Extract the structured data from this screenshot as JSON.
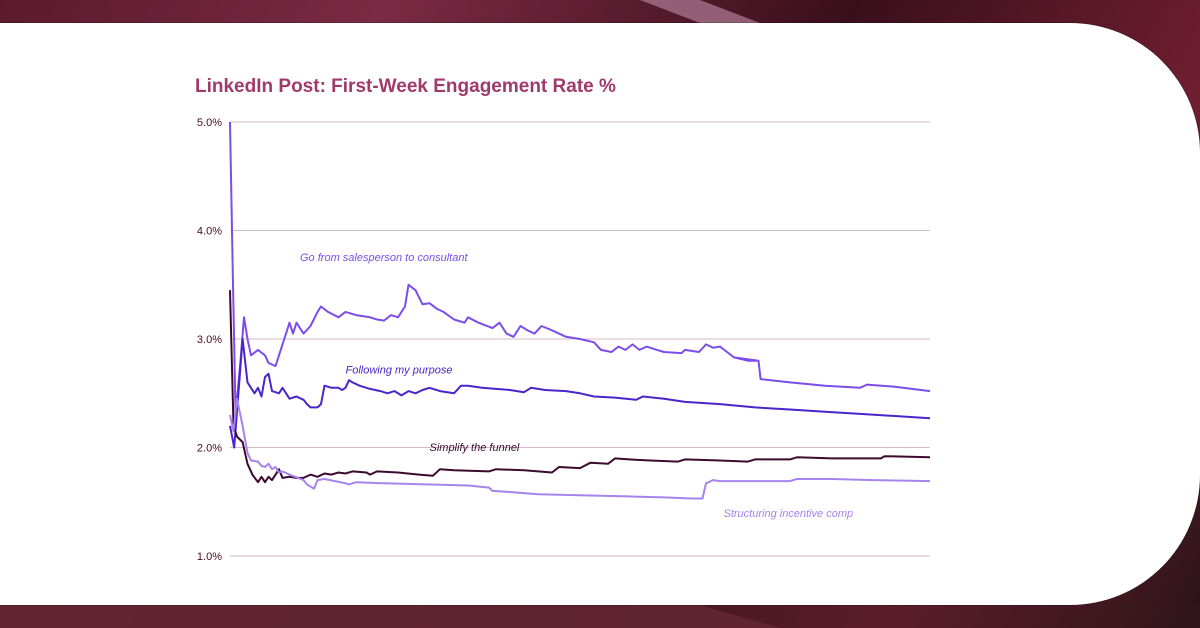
{
  "theme": {
    "title_color": "#a03a6b",
    "grid_color": "#c9a3b5",
    "tick_color": "#4a0b1e"
  },
  "chart_data": {
    "type": "line",
    "title": "LinkedIn Post: First-Week Engagement Rate %",
    "xlabel": "",
    "ylabel": "",
    "ylim": [
      1.0,
      5.0
    ],
    "xlim": [
      0,
      100
    ],
    "y_ticks": [
      {
        "value": 1.0,
        "label": "1.0%"
      },
      {
        "value": 2.0,
        "label": "2.0%"
      },
      {
        "value": 3.0,
        "label": "3.0%"
      },
      {
        "value": 4.0,
        "label": "4.0%"
      },
      {
        "value": 5.0,
        "label": "5.0%"
      }
    ],
    "grid": true,
    "legend": "inline labels",
    "series": [
      {
        "name": "Go from salesperson to consultant",
        "color": "#7c4dea",
        "label_at": [
          10,
          3.72
        ],
        "points": [
          [
            0,
            5.0
          ],
          [
            0.4,
            3.6
          ],
          [
            0.8,
            2.3
          ],
          [
            1.5,
            2.8
          ],
          [
            2.0,
            3.2
          ],
          [
            2.5,
            3.0
          ],
          [
            3.0,
            2.85
          ],
          [
            4.0,
            2.9
          ],
          [
            5.0,
            2.85
          ],
          [
            5.5,
            2.78
          ],
          [
            6.5,
            2.75
          ],
          [
            7.5,
            2.95
          ],
          [
            8.5,
            3.15
          ],
          [
            9.0,
            3.05
          ],
          [
            9.5,
            3.15
          ],
          [
            10.5,
            3.05
          ],
          [
            11.5,
            3.12
          ],
          [
            12.5,
            3.25
          ],
          [
            13.0,
            3.3
          ],
          [
            14.0,
            3.25
          ],
          [
            15.5,
            3.2
          ],
          [
            16.5,
            3.25
          ],
          [
            18.0,
            3.22
          ],
          [
            20.0,
            3.2
          ],
          [
            21.0,
            3.18
          ],
          [
            22.0,
            3.17
          ],
          [
            23.0,
            3.22
          ],
          [
            24.0,
            3.2
          ],
          [
            25.0,
            3.3
          ],
          [
            25.5,
            3.5
          ],
          [
            26.5,
            3.45
          ],
          [
            27.5,
            3.32
          ],
          [
            28.5,
            3.33
          ],
          [
            29.5,
            3.28
          ],
          [
            30.5,
            3.25
          ],
          [
            32.0,
            3.18
          ],
          [
            33.5,
            3.15
          ],
          [
            34.0,
            3.2
          ],
          [
            35.5,
            3.15
          ],
          [
            37.5,
            3.1
          ],
          [
            38.5,
            3.15
          ],
          [
            39.5,
            3.05
          ],
          [
            40.5,
            3.02
          ],
          [
            41.5,
            3.12
          ],
          [
            42.5,
            3.08
          ],
          [
            43.5,
            3.05
          ],
          [
            44.5,
            3.12
          ],
          [
            46.0,
            3.08
          ],
          [
            48.0,
            3.02
          ],
          [
            50.0,
            3.0
          ],
          [
            52.0,
            2.97
          ],
          [
            53.0,
            2.9
          ],
          [
            54.5,
            2.88
          ],
          [
            55.5,
            2.93
          ],
          [
            56.5,
            2.9
          ],
          [
            57.5,
            2.95
          ],
          [
            58.5,
            2.9
          ],
          [
            59.5,
            2.93
          ],
          [
            61.0,
            2.9
          ],
          [
            62.0,
            2.88
          ],
          [
            64.5,
            2.87
          ],
          [
            65.0,
            2.9
          ],
          [
            67.0,
            2.88
          ],
          [
            68.0,
            2.95
          ],
          [
            69.0,
            2.92
          ],
          [
            70.0,
            2.93
          ],
          [
            71.0,
            2.88
          ],
          [
            72.0,
            2.83
          ],
          [
            74.0,
            2.8
          ],
          [
            75.5,
            2.8
          ],
          [
            72.0,
            2.83
          ],
          [
            75.5,
            2.8
          ],
          [
            75.8,
            2.63
          ],
          [
            80.0,
            2.6
          ],
          [
            85.0,
            2.57
          ],
          [
            90.0,
            2.55
          ],
          [
            91.0,
            2.58
          ],
          [
            95.0,
            2.56
          ],
          [
            100.0,
            2.52
          ]
        ]
      },
      {
        "name": "Following my purpose",
        "color": "#4a25c9",
        "label_at": [
          16.5,
          2.68
        ],
        "points": [
          [
            0,
            2.2
          ],
          [
            0.6,
            2.0
          ],
          [
            1.2,
            2.5
          ],
          [
            1.8,
            3.0
          ],
          [
            2.5,
            2.6
          ],
          [
            3.5,
            2.5
          ],
          [
            4.0,
            2.55
          ],
          [
            4.5,
            2.47
          ],
          [
            5.0,
            2.65
          ],
          [
            5.5,
            2.68
          ],
          [
            6.0,
            2.52
          ],
          [
            7.0,
            2.5
          ],
          [
            7.5,
            2.55
          ],
          [
            8.5,
            2.45
          ],
          [
            9.5,
            2.47
          ],
          [
            10.5,
            2.44
          ],
          [
            11.0,
            2.4
          ],
          [
            11.5,
            2.37
          ],
          [
            12.5,
            2.37
          ],
          [
            13.0,
            2.4
          ],
          [
            13.5,
            2.57
          ],
          [
            14.5,
            2.55
          ],
          [
            15.5,
            2.55
          ],
          [
            16.0,
            2.53
          ],
          [
            16.5,
            2.55
          ],
          [
            17.0,
            2.62
          ],
          [
            17.5,
            2.6
          ],
          [
            18.5,
            2.57
          ],
          [
            20.0,
            2.54
          ],
          [
            21.5,
            2.52
          ],
          [
            22.5,
            2.5
          ],
          [
            23.5,
            2.52
          ],
          [
            24.5,
            2.48
          ],
          [
            25.5,
            2.52
          ],
          [
            26.5,
            2.5
          ],
          [
            27.5,
            2.53
          ],
          [
            28.5,
            2.55
          ],
          [
            30.0,
            2.52
          ],
          [
            32.0,
            2.5
          ],
          [
            33.0,
            2.57
          ],
          [
            34.0,
            2.57
          ],
          [
            36.0,
            2.55
          ],
          [
            38.0,
            2.54
          ],
          [
            40.0,
            2.53
          ],
          [
            41.0,
            2.52
          ],
          [
            42.0,
            2.51
          ],
          [
            43.0,
            2.55
          ],
          [
            45.0,
            2.53
          ],
          [
            48.0,
            2.52
          ],
          [
            50.0,
            2.5
          ],
          [
            52.0,
            2.47
          ],
          [
            55.0,
            2.46
          ],
          [
            58.0,
            2.44
          ],
          [
            59.0,
            2.47
          ],
          [
            62.0,
            2.45
          ],
          [
            65.0,
            2.42
          ],
          [
            70.0,
            2.4
          ],
          [
            75.0,
            2.37
          ],
          [
            80.0,
            2.35
          ],
          [
            85.0,
            2.33
          ],
          [
            90.0,
            2.31
          ],
          [
            95.0,
            2.29
          ],
          [
            100.0,
            2.27
          ]
        ]
      },
      {
        "name": "Simplify the funnel",
        "color": "#3b0a2e",
        "label_at": [
          28.5,
          1.97
        ],
        "points": [
          [
            0,
            3.45
          ],
          [
            0.5,
            2.2
          ],
          [
            1.0,
            2.1
          ],
          [
            1.8,
            2.05
          ],
          [
            2.5,
            1.85
          ],
          [
            3.2,
            1.75
          ],
          [
            4.0,
            1.68
          ],
          [
            4.5,
            1.73
          ],
          [
            5.0,
            1.68
          ],
          [
            5.5,
            1.73
          ],
          [
            6.0,
            1.7
          ],
          [
            7.0,
            1.8
          ],
          [
            7.5,
            1.72
          ],
          [
            8.5,
            1.73
          ],
          [
            9.5,
            1.72
          ],
          [
            10.5,
            1.72
          ],
          [
            11.5,
            1.75
          ],
          [
            12.5,
            1.73
          ],
          [
            13.5,
            1.76
          ],
          [
            14.5,
            1.75
          ],
          [
            15.5,
            1.77
          ],
          [
            16.5,
            1.76
          ],
          [
            17.5,
            1.78
          ],
          [
            19.5,
            1.77
          ],
          [
            20.0,
            1.75
          ],
          [
            21.0,
            1.78
          ],
          [
            24.0,
            1.77
          ],
          [
            27.0,
            1.75
          ],
          [
            29.0,
            1.74
          ],
          [
            30.0,
            1.8
          ],
          [
            32.0,
            1.79
          ],
          [
            37.0,
            1.78
          ],
          [
            38.0,
            1.8
          ],
          [
            42.0,
            1.79
          ],
          [
            46.0,
            1.77
          ],
          [
            47.0,
            1.82
          ],
          [
            50.0,
            1.81
          ],
          [
            51.5,
            1.86
          ],
          [
            54.0,
            1.85
          ],
          [
            55.0,
            1.9
          ],
          [
            57.0,
            1.89
          ],
          [
            60.0,
            1.88
          ],
          [
            64.0,
            1.87
          ],
          [
            65.0,
            1.89
          ],
          [
            70.0,
            1.88
          ],
          [
            74.0,
            1.87
          ],
          [
            75.0,
            1.89
          ],
          [
            80.0,
            1.89
          ],
          [
            81.0,
            1.91
          ],
          [
            86.0,
            1.9
          ],
          [
            93.0,
            1.9
          ],
          [
            93.5,
            1.92
          ],
          [
            100.0,
            1.91
          ]
        ]
      },
      {
        "name": "Structuring incentive comp",
        "color": "#a783ec",
        "label_at": [
          70.5,
          1.36
        ],
        "points": [
          [
            0,
            2.3
          ],
          [
            0.5,
            2.15
          ],
          [
            1.0,
            2.45
          ],
          [
            1.8,
            2.2
          ],
          [
            2.5,
            1.95
          ],
          [
            3.0,
            1.88
          ],
          [
            4.0,
            1.87
          ],
          [
            4.5,
            1.83
          ],
          [
            5.0,
            1.82
          ],
          [
            5.5,
            1.85
          ],
          [
            6.0,
            1.8
          ],
          [
            6.5,
            1.82
          ],
          [
            7.0,
            1.77
          ],
          [
            7.5,
            1.78
          ],
          [
            8.5,
            1.75
          ],
          [
            10.5,
            1.7
          ],
          [
            11.0,
            1.66
          ],
          [
            11.5,
            1.64
          ],
          [
            12.0,
            1.62
          ],
          [
            12.5,
            1.7
          ],
          [
            13.5,
            1.71
          ],
          [
            15.0,
            1.69
          ],
          [
            16.5,
            1.67
          ],
          [
            17.0,
            1.66
          ],
          [
            18.0,
            1.68
          ],
          [
            22.0,
            1.67
          ],
          [
            28.0,
            1.66
          ],
          [
            34.0,
            1.65
          ],
          [
            37.0,
            1.63
          ],
          [
            37.5,
            1.6
          ],
          [
            40.0,
            1.59
          ],
          [
            44.0,
            1.57
          ],
          [
            50.0,
            1.56
          ],
          [
            56.0,
            1.55
          ],
          [
            62.0,
            1.54
          ],
          [
            66.0,
            1.53
          ],
          [
            67.5,
            1.53
          ],
          [
            68.0,
            1.67
          ],
          [
            69.0,
            1.7
          ],
          [
            70.0,
            1.69
          ],
          [
            80.0,
            1.69
          ],
          [
            81.0,
            1.71
          ],
          [
            86.0,
            1.71
          ],
          [
            92.0,
            1.7
          ],
          [
            100.0,
            1.69
          ]
        ]
      }
    ]
  }
}
